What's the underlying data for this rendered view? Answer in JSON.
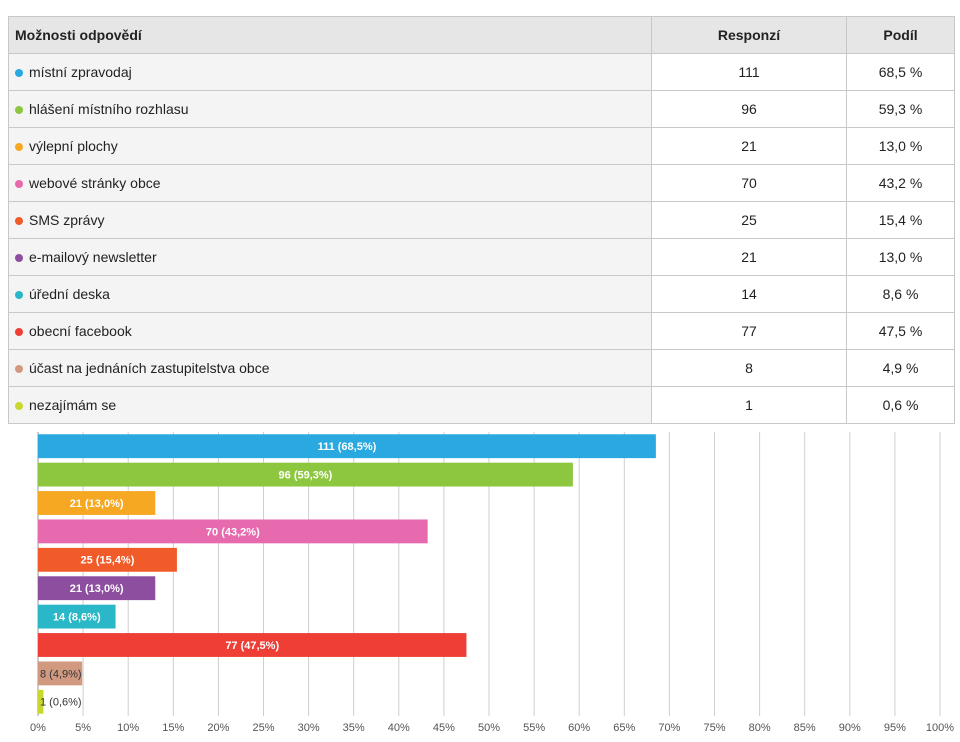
{
  "table": {
    "headers": [
      "Možnosti odpovědí",
      "Responzí",
      "Podíl"
    ],
    "rows": [
      [
        "místní zpravodaj",
        111,
        "68,5 %"
      ],
      [
        "hlášení místního rozhlasu",
        96,
        "59,3 %"
      ],
      [
        "výlepní plochy",
        21,
        "13,0 %"
      ],
      [
        "webové stránky obce",
        70,
        "43,2 %"
      ],
      [
        "SMS zprávy",
        25,
        "15,4 %"
      ],
      [
        "e-mailový newsletter",
        21,
        "13,0 %"
      ],
      [
        "úřední deska",
        14,
        "8,6 %"
      ],
      [
        "obecní facebook",
        77,
        "47,5 %"
      ],
      [
        "účast na jednáních zastupitelstva obce",
        8,
        "4,9 %"
      ],
      [
        "nezajímám se",
        1,
        "0,6 %"
      ]
    ]
  },
  "chart_data": {
    "type": "bar",
    "orientation": "horizontal",
    "values": [
      68.5,
      59.3,
      13.0,
      43.2,
      15.4,
      13.0,
      8.6,
      47.5,
      4.9,
      0.6
    ],
    "value_labels": [
      "111 (68,5%)",
      "96 (59,3%)",
      "21 (13,0%)",
      "70 (43,2%)",
      "25 (15,4%)",
      "21 (13,0%)",
      "14 (8,6%)",
      "77 (47,5%)",
      "8 (4,9%)",
      "1 (0,6%)"
    ],
    "colors": [
      "#29a9e0",
      "#8dc63f",
      "#f7a823",
      "#e76aae",
      "#f15a29",
      "#8e4ea0",
      "#2ab8c8",
      "#ee3e36",
      "#d19a80",
      "#c9d82d"
    ],
    "xlim": [
      0,
      100
    ],
    "xticks": [
      {
        "value": 0,
        "label": "0%"
      },
      {
        "value": 5,
        "label": "5%"
      },
      {
        "value": 10,
        "label": "10%"
      },
      {
        "value": 15,
        "label": "15%"
      },
      {
        "value": 20,
        "label": "20%"
      },
      {
        "value": 25,
        "label": "25%"
      },
      {
        "value": 30,
        "label": "30%"
      },
      {
        "value": 35,
        "label": "35%"
      },
      {
        "value": 40,
        "label": "40%"
      },
      {
        "value": 45,
        "label": "45%"
      },
      {
        "value": 50,
        "label": "50%"
      },
      {
        "value": 55,
        "label": "55%"
      },
      {
        "value": 60,
        "label": "60%"
      },
      {
        "value": 65,
        "label": "65%"
      },
      {
        "value": 70,
        "label": "70%"
      },
      {
        "value": 75,
        "label": "75%"
      },
      {
        "value": 80,
        "label": "80%"
      },
      {
        "value": 85,
        "label": "85%"
      },
      {
        "value": 90,
        "label": "90%"
      },
      {
        "value": 95,
        "label": "95%"
      },
      {
        "value": 100,
        "label": "100%"
      }
    ],
    "grid": true
  }
}
